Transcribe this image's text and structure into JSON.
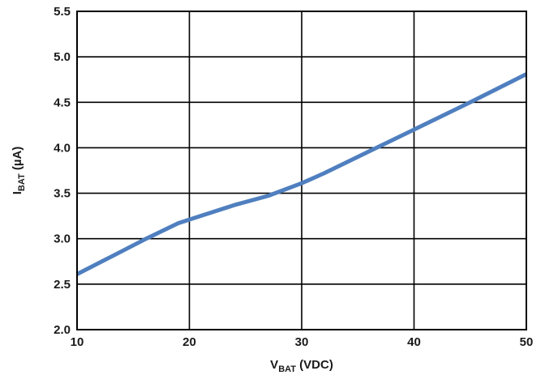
{
  "chart_data": {
    "type": "line",
    "x_label": {
      "main": "V",
      "sub": "BAT",
      "rest": " (VDC)"
    },
    "y_label": {
      "main": "I",
      "sub": "BAT",
      "rest": " (µA)"
    },
    "xlim": [
      10,
      50
    ],
    "ylim": [
      2.0,
      5.5
    ],
    "x_ticks": [
      10,
      20,
      30,
      40,
      50
    ],
    "x_tick_labels": [
      "10",
      "20",
      "30",
      "40",
      "50"
    ],
    "y_ticks": [
      2.0,
      2.5,
      3.0,
      3.5,
      4.0,
      4.5,
      5.0,
      5.5
    ],
    "y_tick_labels": [
      "2.0",
      "2.5",
      "3.0",
      "3.5",
      "4.0",
      "4.5",
      "5.0",
      "5.5"
    ],
    "grid": true,
    "series": [
      {
        "color": "#4f7fbf",
        "x": [
          10,
          13,
          16,
          19,
          20,
          24,
          27,
          30,
          32,
          36,
          40,
          45,
          50
        ],
        "y": [
          2.61,
          2.8,
          2.99,
          3.17,
          3.21,
          3.37,
          3.47,
          3.61,
          3.72,
          3.96,
          4.2,
          4.5,
          4.81
        ]
      }
    ]
  }
}
